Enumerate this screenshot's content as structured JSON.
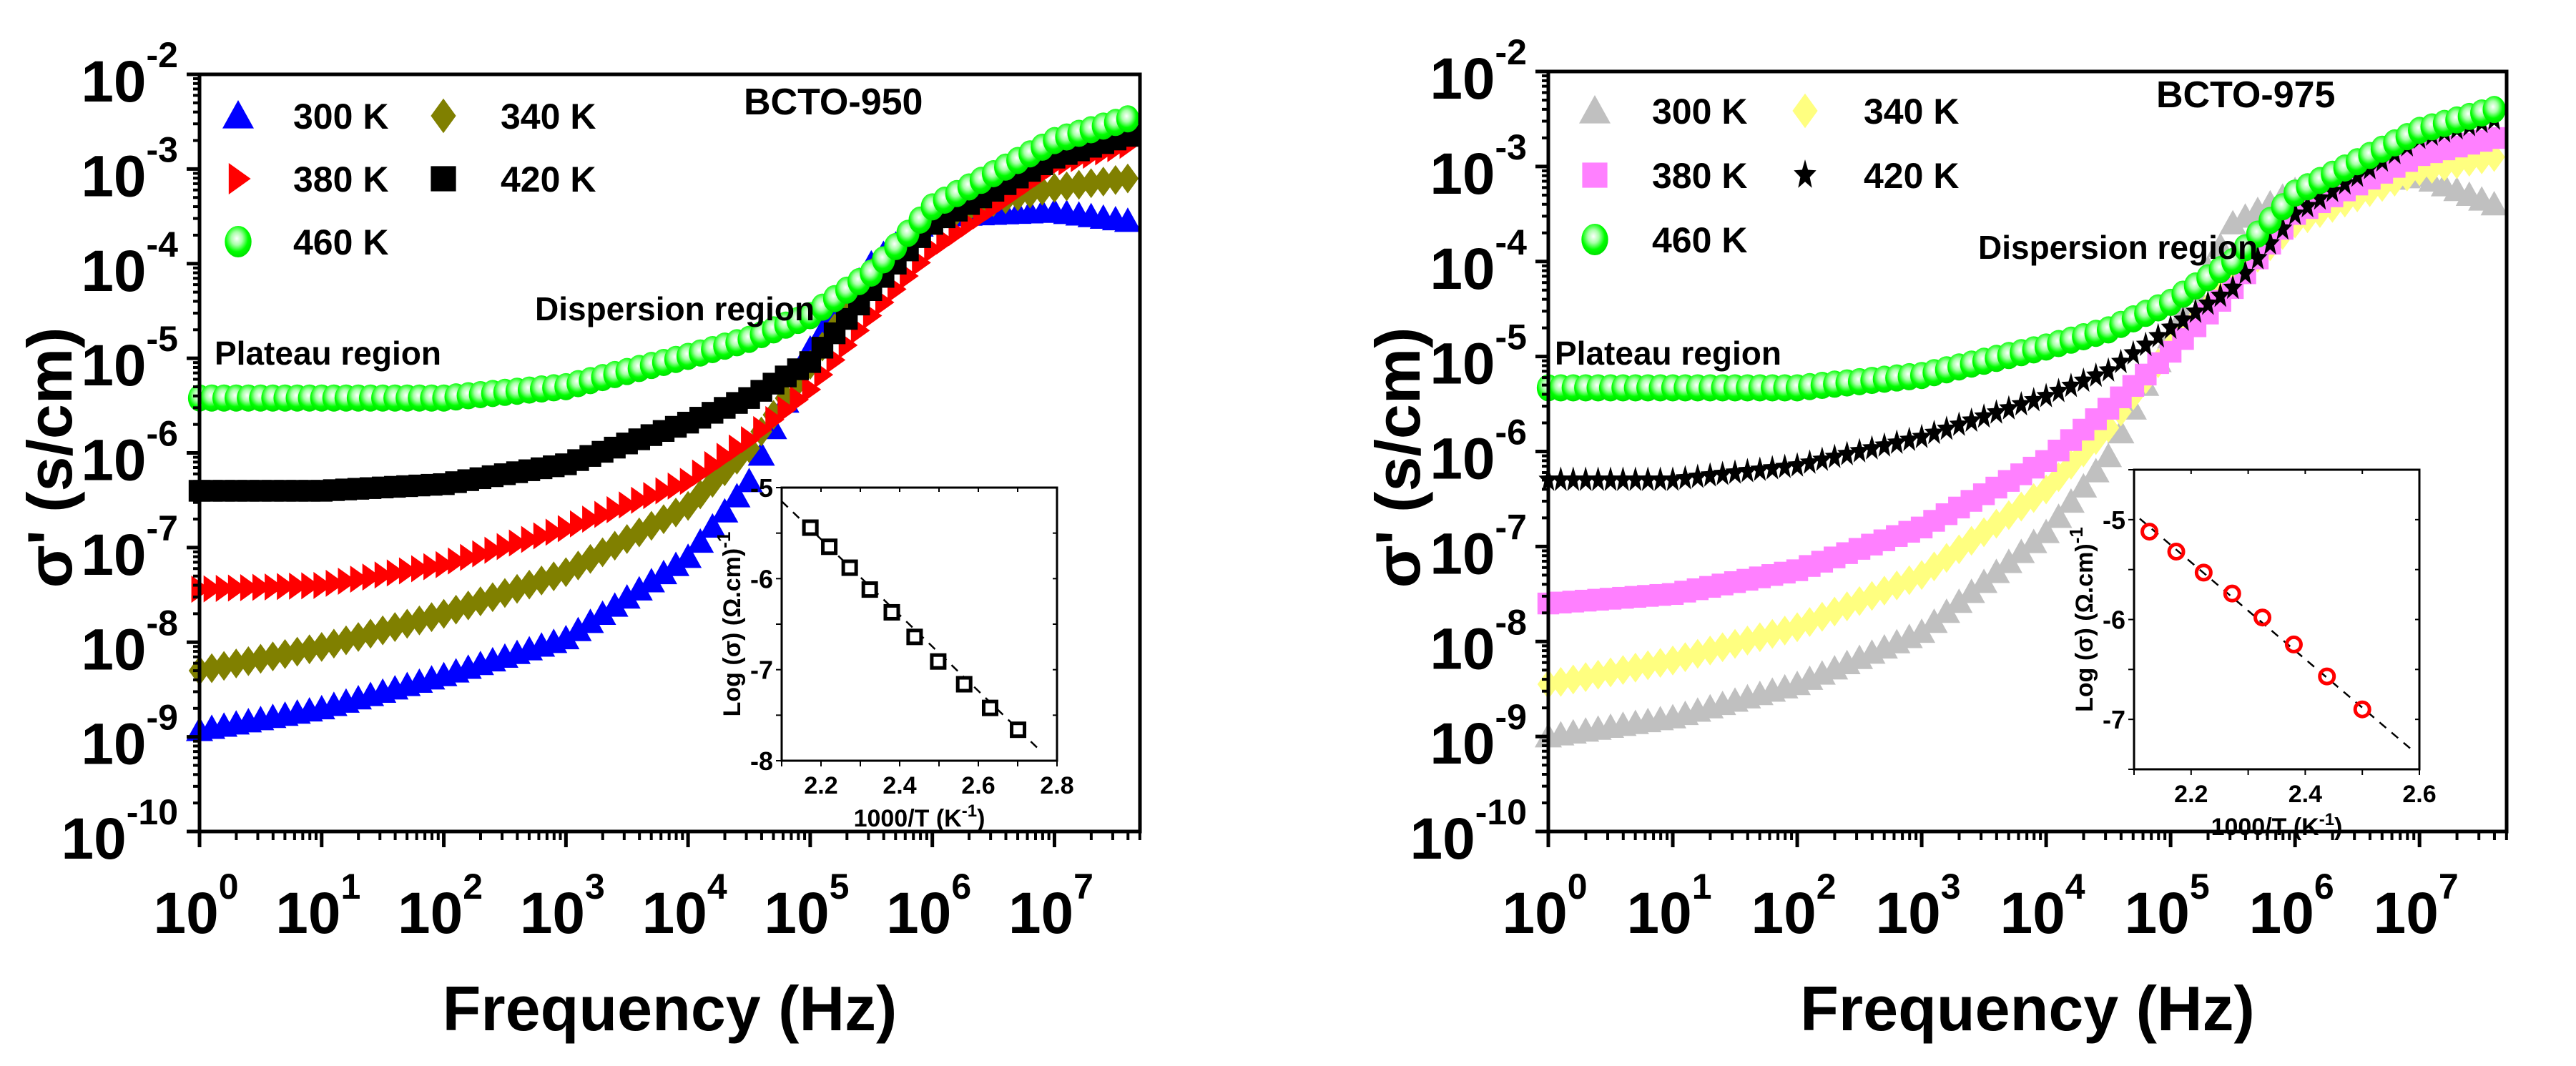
{
  "chart_data": [
    {
      "type": "scatter",
      "title": "BCTO-950",
      "xlabel": "Frequency (Hz)",
      "ylabel": "σ' (s/cm)",
      "xscale": "log",
      "yscale": "log",
      "xlim_log10": [
        0,
        7.7
      ],
      "ylim_log10": [
        -10,
        -2
      ],
      "xtick_exponents": [
        0,
        1,
        2,
        3,
        4,
        5,
        6,
        7
      ],
      "ytick_exponents": [
        -2,
        -3,
        -4,
        -5,
        -6,
        -7,
        -8,
        -9,
        -10
      ],
      "tick_base": "10",
      "annotations": [
        "Plateau region",
        "Dispersion region"
      ],
      "legend_placement": "top-left",
      "x_log10": [
        0,
        1,
        2,
        3,
        4,
        4.5,
        5,
        5.5,
        6,
        7,
        7.6
      ],
      "series": [
        {
          "name": "300 K",
          "marker": "triangle-up",
          "color": "#0000ff",
          "log10_values": [
            -8.93,
            -8.7,
            -8.35,
            -7.96,
            -7.1,
            -6.3,
            -4.9,
            -4.0,
            -3.5,
            -3.45,
            -3.55
          ]
        },
        {
          "name": "340 K",
          "marker": "diamond",
          "color": "#808000",
          "log10_values": [
            -8.3,
            -8.05,
            -7.7,
            -7.26,
            -6.56,
            -5.95,
            -5.07,
            -4.1,
            -3.5,
            -3.2,
            -3.1
          ]
        },
        {
          "name": "380 K",
          "marker": "triangle-right",
          "color": "#ff0000",
          "log10_values": [
            -7.44,
            -7.4,
            -7.18,
            -6.8,
            -6.3,
            -5.86,
            -5.33,
            -4.55,
            -3.85,
            -2.96,
            -2.75
          ]
        },
        {
          "name": "420 K",
          "marker": "square",
          "color": "#000000",
          "log10_values": [
            -6.4,
            -6.4,
            -6.33,
            -6.12,
            -5.68,
            -5.42,
            -5.04,
            -4.28,
            -3.58,
            -2.88,
            -2.65
          ]
        },
        {
          "name": "460 K",
          "marker": "sphere",
          "color": "#00ff00",
          "log10_values": [
            -5.42,
            -5.42,
            -5.42,
            -5.3,
            -4.98,
            -4.8,
            -4.55,
            -4.1,
            -3.4,
            -2.7,
            -2.47
          ]
        }
      ],
      "inset": {
        "type": "scatter",
        "xlabel": "1000/T (K",
        "xlabel_sup": "-1",
        "xlabel_end": ")",
        "ylabel": "Log (σ) (Ω.cm)",
        "ylabel_sup": "-1",
        "xlim": [
          2.1,
          2.8
        ],
        "ylim": [
          -8,
          -5
        ],
        "xticks": [
          "2.2",
          "2.4",
          "2.6",
          "2.8"
        ],
        "yticks": [
          "-5",
          "-6",
          "-7",
          "-8"
        ],
        "marker": "open-square",
        "color": "#000000",
        "fit": "dashed-linear",
        "fit_line": [
          [
            2.1,
            -5.15
          ],
          [
            2.76,
            -7.9
          ]
        ],
        "x": [
          2.173,
          2.221,
          2.273,
          2.324,
          2.38,
          2.438,
          2.498,
          2.564,
          2.63,
          2.701
        ],
        "y": [
          -5.44,
          -5.65,
          -5.88,
          -6.12,
          -6.37,
          -6.64,
          -6.91,
          -7.16,
          -7.42,
          -7.66
        ]
      }
    },
    {
      "type": "scatter",
      "title": "BCTO-975",
      "xlabel": "Frequency (Hz)",
      "ylabel": "σ' (s/cm)",
      "xscale": "log",
      "yscale": "log",
      "xlim_log10": [
        0,
        7.7
      ],
      "ylim_log10": [
        -10,
        -2
      ],
      "xtick_exponents": [
        0,
        1,
        2,
        3,
        4,
        5,
        6,
        7
      ],
      "ytick_exponents": [
        -2,
        -3,
        -4,
        -5,
        -6,
        -7,
        -8,
        -9,
        -10
      ],
      "tick_base": "10",
      "annotations": [
        "Plateau region",
        "Dispersion region"
      ],
      "legend_placement": "top-left",
      "x_log10": [
        0,
        1,
        2,
        3,
        4,
        4.5,
        5,
        5.5,
        6,
        7,
        7.6
      ],
      "series": [
        {
          "name": "300 K",
          "marker": "triangle-up",
          "color": "#c0c0c0",
          "log10_values": [
            -9.0,
            -8.8,
            -8.45,
            -7.9,
            -6.85,
            -6.05,
            -4.8,
            -3.6,
            -3.25,
            -3.1,
            -3.4
          ]
        },
        {
          "name": "340 K",
          "marker": "diamond",
          "color": "#ffff80",
          "log10_values": [
            -8.45,
            -8.2,
            -7.85,
            -7.3,
            -6.4,
            -5.75,
            -4.9,
            -4.2,
            -3.6,
            -3.05,
            -2.9
          ]
        },
        {
          "name": "380 K",
          "marker": "square",
          "color": "#ff80ff",
          "log10_values": [
            -7.6,
            -7.5,
            -7.25,
            -6.8,
            -6.1,
            -5.55,
            -4.95,
            -4.28,
            -3.5,
            -2.88,
            -2.7
          ]
        },
        {
          "name": "420 K",
          "marker": "star",
          "color": "#000000",
          "log10_values": [
            -6.3,
            -6.3,
            -6.15,
            -5.85,
            -5.42,
            -5.15,
            -4.7,
            -4.28,
            -3.5,
            -2.7,
            -2.5
          ]
        },
        {
          "name": "460 K",
          "marker": "sphere",
          "color": "#00ff00",
          "log10_values": [
            -5.33,
            -5.33,
            -5.33,
            -5.2,
            -4.9,
            -4.72,
            -4.43,
            -4.0,
            -3.28,
            -2.62,
            -2.4
          ]
        }
      ],
      "inset": {
        "type": "scatter",
        "xlabel": "1000/T (K",
        "xlabel_sup": "-1",
        "xlabel_end": ")",
        "ylabel": "Log (σ) (Ω.cm)",
        "ylabel_sup": "-1",
        "xlim": [
          2.1,
          2.6
        ],
        "ylim": [
          -7.5,
          -4.5
        ],
        "xticks": [
          "2.2",
          "2.4",
          "2.6"
        ],
        "yticks": [
          "-5",
          "-6",
          "-7"
        ],
        "marker": "open-circle",
        "color": "#ff0000",
        "fit": "dashed-linear",
        "fit_line": [
          [
            2.11,
            -4.99
          ],
          [
            2.59,
            -7.32
          ]
        ],
        "x": [
          2.127,
          2.174,
          2.222,
          2.272,
          2.325,
          2.38,
          2.438,
          2.5
        ],
        "y": [
          -5.12,
          -5.32,
          -5.53,
          -5.74,
          -5.98,
          -6.25,
          -6.57,
          -6.9
        ]
      }
    }
  ]
}
